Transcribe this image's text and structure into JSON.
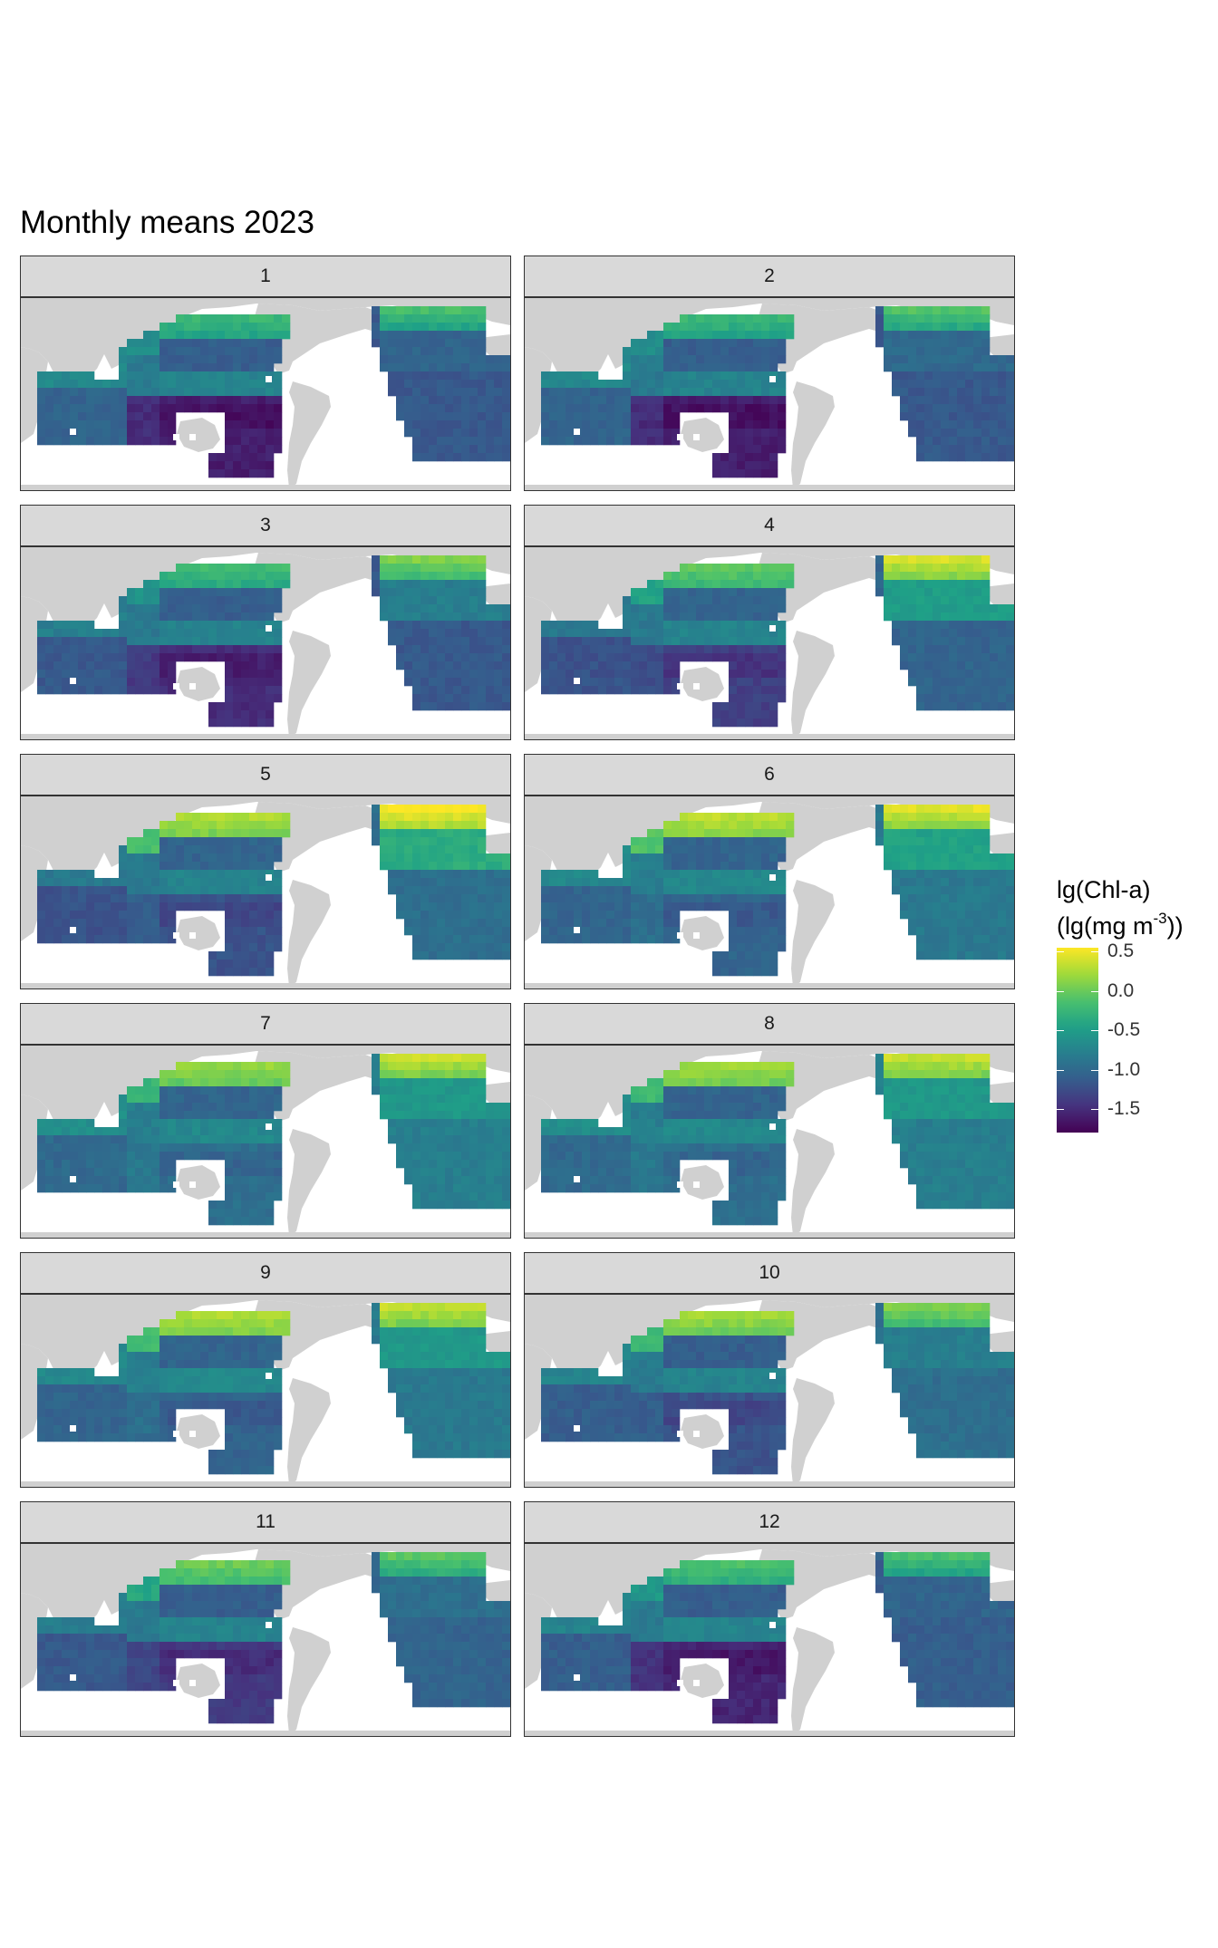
{
  "title": "Monthly means 2023",
  "panels": [
    "1",
    "2",
    "3",
    "4",
    "5",
    "6",
    "7",
    "8",
    "9",
    "10",
    "11",
    "12"
  ],
  "legend": {
    "title_line1": "lg(Chl-a)",
    "title_line2_pre": "(lg(mg m",
    "title_line2_sup": "-3",
    "title_line2_post": "))",
    "ticks": [
      "0.5",
      "0.0",
      "-0.5",
      "-1.0",
      "-1.5"
    ],
    "tick_values": [
      0.5,
      0.0,
      -0.5,
      -1.0,
      -1.5
    ],
    "range": [
      -1.8,
      0.55
    ]
  },
  "colors": {
    "land": "#d0d0d0",
    "strip": "#d9d9d9",
    "viridis": [
      "#440154",
      "#46327e",
      "#365c8d",
      "#277f8e",
      "#1fa187",
      "#4ac16d",
      "#a0da39",
      "#fde725"
    ]
  },
  "chart_data": {
    "type": "heatmap",
    "title": "Monthly means 2023",
    "facet_by": "month",
    "facets": [
      1,
      2,
      3,
      4,
      5,
      6,
      7,
      8,
      9,
      10,
      11,
      12
    ],
    "colorbar_label": "lg(Chl-a) (lg(mg m-3))",
    "colorbar_range": [
      -1.8,
      0.55
    ],
    "colorbar_ticks": [
      0.5,
      0.0,
      -0.5,
      -1.0,
      -1.5
    ],
    "regions_mean_by_month": {
      "north_pacific_subpolar": [
        -0.45,
        -0.45,
        -0.4,
        -0.25,
        0.05,
        0.1,
        -0.05,
        0.0,
        0.05,
        0.0,
        -0.2,
        -0.35
      ],
      "north_atlantic_subpolar": [
        -0.55,
        -0.5,
        -0.3,
        0.0,
        0.15,
        0.05,
        -0.05,
        -0.05,
        -0.05,
        -0.3,
        -0.45,
        -0.55
      ],
      "north_pacific_gyre": [
        -1.1,
        -1.1,
        -1.1,
        -1.05,
        -1.05,
        -1.05,
        -1.05,
        -1.05,
        -1.05,
        -1.1,
        -1.1,
        -1.1
      ],
      "equatorial_pacific": [
        -0.75,
        -0.75,
        -0.75,
        -0.75,
        -0.75,
        -0.7,
        -0.7,
        -0.7,
        -0.7,
        -0.75,
        -0.75,
        -0.75
      ],
      "south_pacific_gyre": [
        -1.6,
        -1.6,
        -1.5,
        -1.35,
        -1.2,
        -1.05,
        -0.95,
        -0.95,
        -1.05,
        -1.2,
        -1.4,
        -1.55
      ],
      "indian_ocean": [
        -0.85,
        -0.85,
        -0.95,
        -1.0,
        -1.0,
        -0.85,
        -0.8,
        -0.8,
        -0.85,
        -0.9,
        -0.95,
        -0.9
      ],
      "south_atlantic": [
        -1.15,
        -1.15,
        -1.15,
        -1.05,
        -0.95,
        -0.85,
        -0.8,
        -0.8,
        -0.85,
        -0.95,
        -1.05,
        -1.1
      ]
    }
  }
}
